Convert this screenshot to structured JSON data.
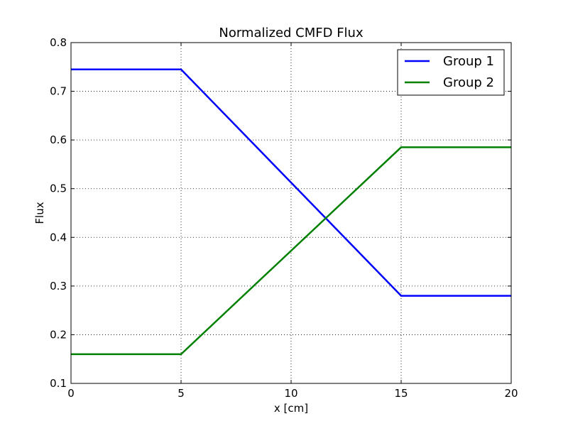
{
  "chart_data": {
    "type": "line",
    "title": "Normalized CMFD Flux",
    "xlabel": "x [cm]",
    "ylabel": "Flux",
    "xlim": [
      0,
      20
    ],
    "ylim": [
      0.1,
      0.8
    ],
    "xticks": [
      0,
      5,
      10,
      15,
      20
    ],
    "yticks": [
      0.1,
      0.2,
      0.3,
      0.4,
      0.5,
      0.6,
      0.7,
      0.8
    ],
    "xtick_labels": [
      "0",
      "5",
      "10",
      "15",
      "20"
    ],
    "ytick_labels": [
      "0.1",
      "0.2",
      "0.3",
      "0.4",
      "0.5",
      "0.6",
      "0.7",
      "0.8"
    ],
    "grid": true,
    "legend_position": "top-right",
    "series": [
      {
        "name": "Group 1",
        "color": "#0000ff",
        "x": [
          0,
          5,
          15,
          20
        ],
        "y": [
          0.745,
          0.745,
          0.28,
          0.28
        ]
      },
      {
        "name": "Group 2",
        "color": "#008000",
        "x": [
          0,
          5,
          15,
          20
        ],
        "y": [
          0.16,
          0.16,
          0.585,
          0.585
        ]
      }
    ]
  }
}
